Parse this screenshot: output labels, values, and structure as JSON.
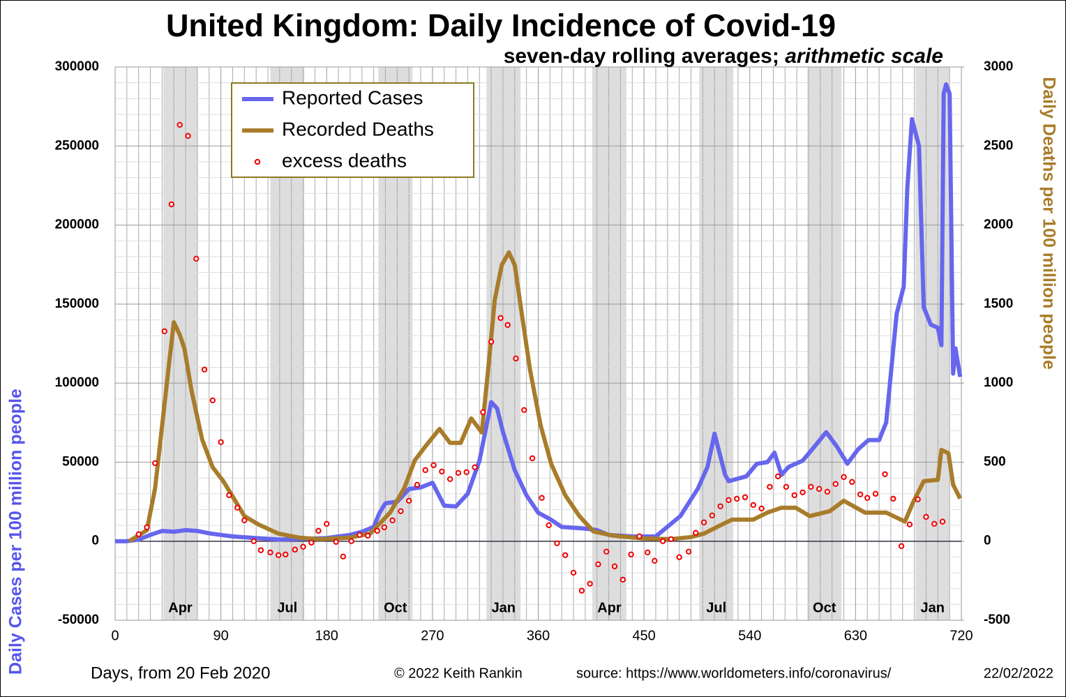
{
  "chart_data": {
    "type": "line",
    "title": "United Kingdom: Daily Incidence of Covid-19",
    "subtitle": "seven-day rolling averages;",
    "subtitle_italic": "arithmetic scale",
    "xlabel": "Days, from 20 Feb 2020",
    "ylabel": "Daily Cases per 100 million people",
    "y2label": "Daily Deaths per 100 million people",
    "credit": "© 2022  Keith Rankin",
    "source": "source: https://www.worldometers.info/coronavirus/",
    "date": "22/02/2022",
    "xlim": [
      0,
      720
    ],
    "xticks": [
      0,
      90,
      180,
      270,
      360,
      450,
      540,
      630,
      720
    ],
    "ylim": [
      -50000,
      300000
    ],
    "yticks": [
      -50000,
      0,
      50000,
      100000,
      150000,
      200000,
      250000,
      300000
    ],
    "y2lim": [
      -500,
      3000
    ],
    "y2ticks": [
      -500,
      0,
      500,
      1000,
      1500,
      2000,
      2500,
      3000
    ],
    "grid": true,
    "minor_divisions": {
      "x": 9,
      "y": 5
    },
    "legend": "top-left",
    "bands": [
      {
        "label": "Apr",
        "start": 41,
        "end": 70
      },
      {
        "label": "Jul",
        "start": 132,
        "end": 161
      },
      {
        "label": "Oct",
        "start": 224,
        "end": 253
      },
      {
        "label": "Jan",
        "start": 316,
        "end": 345
      },
      {
        "label": "Apr",
        "start": 406,
        "end": 435
      },
      {
        "label": "Jul",
        "start": 497,
        "end": 526
      },
      {
        "label": "Oct",
        "start": 589,
        "end": 618
      },
      {
        "label": "Jan",
        "start": 681,
        "end": 710
      }
    ],
    "series": [
      {
        "name": "Reported Cases",
        "type": "line",
        "axis": "y",
        "color": "#6666ee",
        "x": [
          0,
          10,
          20,
          30,
          40,
          50,
          60,
          70,
          80,
          90,
          100,
          120,
          140,
          160,
          180,
          190,
          200,
          210,
          220,
          225,
          230,
          240,
          250,
          260,
          270,
          280,
          290,
          300,
          310,
          320,
          325,
          330,
          340,
          350,
          360,
          370,
          380,
          400,
          410,
          420,
          440,
          460,
          481,
          496,
          504,
          510,
          519,
          522,
          537,
          546,
          555,
          561,
          567,
          573,
          585,
          593,
          605,
          614,
          623,
          632,
          641,
          650,
          656,
          665,
          671,
          674,
          678,
          684,
          688,
          694,
          700,
          703,
          705,
          707,
          710,
          713,
          715,
          719
        ],
        "values": [
          0,
          0,
          1000,
          4000,
          6500,
          6000,
          7000,
          6500,
          5000,
          4000,
          3000,
          2000,
          1000,
          1500,
          2000,
          3000,
          4000,
          6000,
          9000,
          18000,
          24000,
          25000,
          33000,
          34000,
          37000,
          22500,
          22000,
          30000,
          51000,
          88000,
          84000,
          69000,
          45000,
          29000,
          18000,
          14000,
          9000,
          8000,
          7000,
          4000,
          3000,
          3000,
          16000,
          33500,
          47000,
          68000,
          42000,
          38000,
          41000,
          49000,
          50000,
          56000,
          42000,
          47000,
          51000,
          58000,
          69000,
          60000,
          49000,
          58000,
          64000,
          64000,
          75000,
          144000,
          161000,
          223000,
          267000,
          250000,
          148000,
          137000,
          135000,
          124000,
          283000,
          289000,
          283000,
          106000,
          122000,
          104000
        ]
      },
      {
        "name": "Recorded Deaths",
        "type": "line",
        "axis": "y2",
        "color": "#a87c2a",
        "x": [
          12,
          27,
          34,
          42,
          46,
          50,
          55,
          59,
          65,
          74,
          83,
          92,
          101,
          110,
          122,
          139,
          157,
          175,
          199,
          217,
          234,
          246,
          255,
          264,
          276,
          285,
          294,
          303,
          312,
          318,
          323,
          329,
          335,
          340,
          346,
          353,
          362,
          371,
          383,
          395,
          407,
          424,
          448,
          472,
          490,
          501,
          513,
          525,
          543,
          555,
          567,
          579,
          591,
          608,
          620,
          638,
          656,
          672,
          679,
          688,
          700,
          703,
          709,
          713,
          719
        ],
        "values": [
          0,
          70,
          335,
          865,
          1130,
          1385,
          1306,
          1218,
          953,
          644,
          468,
          380,
          270,
          159,
          106,
          48,
          22,
          13,
          22,
          48,
          181,
          335,
          512,
          600,
          710,
          622,
          622,
          777,
          688,
          1130,
          1527,
          1748,
          1827,
          1748,
          1439,
          1086,
          733,
          490,
          291,
          159,
          62,
          35,
          18,
          13,
          26,
          48,
          93,
          137,
          137,
          181,
          212,
          212,
          159,
          190,
          256,
          181,
          181,
          124,
          247,
          380,
          388,
          578,
          556,
          357,
          270
        ]
      },
      {
        "name": "excess deaths",
        "type": "scatter",
        "axis": "y2",
        "color": "#ee0000",
        "x": [
          20,
          27,
          34,
          42,
          48,
          55,
          62,
          69,
          76,
          83,
          90,
          97,
          104,
          110,
          118,
          124,
          132,
          139,
          145,
          153,
          160,
          167,
          173,
          180,
          188,
          194,
          201,
          208,
          215,
          223,
          229,
          236,
          243,
          250,
          257,
          264,
          271,
          278,
          285,
          292,
          299,
          306,
          313,
          320,
          328,
          334,
          341,
          348,
          355,
          363,
          369,
          376,
          383,
          390,
          397,
          404,
          411,
          418,
          425,
          432,
          439,
          446,
          453,
          459,
          466,
          473,
          480,
          488,
          494,
          501,
          508,
          515,
          522,
          529,
          536,
          543,
          550,
          557,
          564,
          571,
          578,
          585,
          592,
          599,
          606,
          613,
          620,
          627,
          634,
          640,
          647,
          655,
          662,
          669,
          676,
          683,
          690,
          697,
          704
        ],
        "values": [
          44,
          88,
          494,
          1328,
          2131,
          2634,
          2564,
          1787,
          1086,
          891,
          627,
          291,
          212,
          132,
          0,
          -57,
          -71,
          -88,
          -84,
          -53,
          -35,
          -9,
          66,
          110,
          -4,
          -97,
          0,
          40,
          35,
          66,
          88,
          132,
          190,
          256,
          357,
          450,
          481,
          441,
          393,
          432,
          437,
          468,
          816,
          1262,
          1412,
          1368,
          1156,
          830,
          525,
          274,
          101,
          -13,
          -88,
          -199,
          -313,
          -269,
          -146,
          -66,
          -159,
          -243,
          -84,
          31,
          -71,
          -124,
          0,
          13,
          -101,
          -66,
          53,
          119,
          163,
          221,
          260,
          269,
          278,
          229,
          207,
          344,
          410,
          344,
          291,
          309,
          344,
          331,
          313,
          362,
          406,
          375,
          296,
          274,
          300,
          424,
          269,
          -31,
          106,
          265,
          154,
          110,
          124
        ]
      }
    ]
  }
}
